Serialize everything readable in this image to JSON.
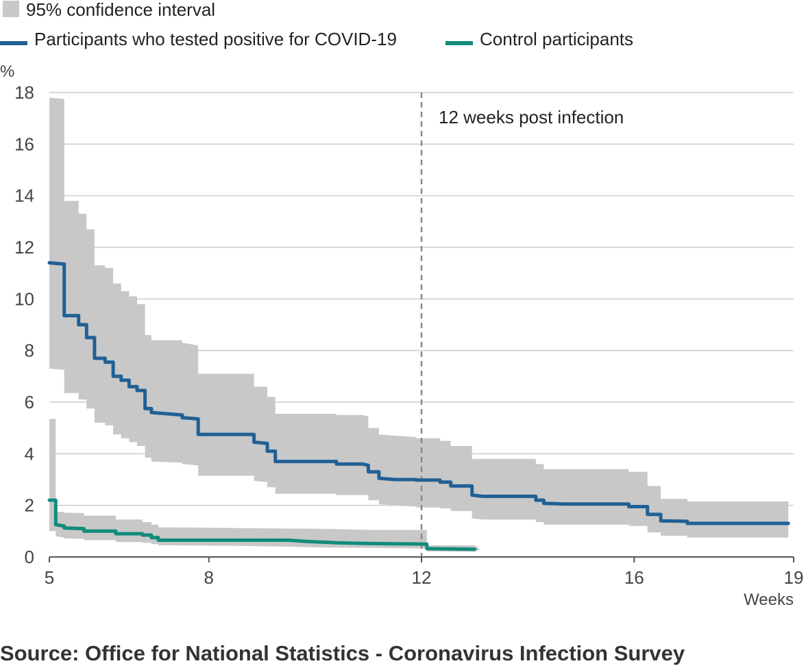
{
  "chart_data": {
    "type": "line",
    "xlabel": "Weeks",
    "ylabel": "%",
    "xlim": [
      5,
      19
    ],
    "ylim": [
      0,
      18
    ],
    "x_ticks": [
      5,
      8,
      12,
      16,
      19
    ],
    "y_ticks": [
      0,
      2,
      4,
      6,
      8,
      10,
      12,
      14,
      16,
      18
    ],
    "grid": "horizontal",
    "legend_position": "top-left",
    "legend": {
      "ci_label": "95% confidence interval",
      "covid_label": "Participants who tested positive for COVID-19",
      "control_label": "Control participants"
    },
    "annotation": {
      "x": 12,
      "text": "12 weeks post infection"
    },
    "colors": {
      "covid": "#206095",
      "control": "#118C7B",
      "ci": "#c8c8c8",
      "grid": "#cccccc",
      "annotation_line": "#888888"
    },
    "series": [
      {
        "name": "Participants who tested positive for COVID-19",
        "steps": [
          [
            5.0,
            11.4
          ],
          [
            5.28,
            11.35
          ],
          [
            5.28,
            9.35
          ],
          [
            5.55,
            9.35
          ],
          [
            5.55,
            9.0
          ],
          [
            5.7,
            9.0
          ],
          [
            5.7,
            8.5
          ],
          [
            5.85,
            8.5
          ],
          [
            5.85,
            7.7
          ],
          [
            6.05,
            7.7
          ],
          [
            6.05,
            7.55
          ],
          [
            6.2,
            7.55
          ],
          [
            6.2,
            7.0
          ],
          [
            6.35,
            7.0
          ],
          [
            6.35,
            6.85
          ],
          [
            6.5,
            6.85
          ],
          [
            6.5,
            6.6
          ],
          [
            6.65,
            6.6
          ],
          [
            6.65,
            6.45
          ],
          [
            6.8,
            6.45
          ],
          [
            6.8,
            5.75
          ],
          [
            6.92,
            5.75
          ],
          [
            6.92,
            5.6
          ],
          [
            7.5,
            5.5
          ],
          [
            7.5,
            5.4
          ],
          [
            7.8,
            5.35
          ],
          [
            7.8,
            4.75
          ],
          [
            8.85,
            4.75
          ],
          [
            8.85,
            4.45
          ],
          [
            9.1,
            4.4
          ],
          [
            9.1,
            4.1
          ],
          [
            9.25,
            4.1
          ],
          [
            9.25,
            3.7
          ],
          [
            10.4,
            3.7
          ],
          [
            10.4,
            3.6
          ],
          [
            10.9,
            3.6
          ],
          [
            11.0,
            3.55
          ],
          [
            11.0,
            3.3
          ],
          [
            11.2,
            3.3
          ],
          [
            11.2,
            3.05
          ],
          [
            11.5,
            3.0
          ],
          [
            11.9,
            3.0
          ],
          [
            11.9,
            2.98
          ],
          [
            12.35,
            2.98
          ],
          [
            12.35,
            2.9
          ],
          [
            12.55,
            2.9
          ],
          [
            12.55,
            2.75
          ],
          [
            12.95,
            2.75
          ],
          [
            12.95,
            2.4
          ],
          [
            13.15,
            2.35
          ],
          [
            14.15,
            2.35
          ],
          [
            14.15,
            2.2
          ],
          [
            14.3,
            2.2
          ],
          [
            14.3,
            2.08
          ],
          [
            14.7,
            2.05
          ],
          [
            15.9,
            2.05
          ],
          [
            15.9,
            1.95
          ],
          [
            16.25,
            1.95
          ],
          [
            16.25,
            1.65
          ],
          [
            16.5,
            1.65
          ],
          [
            16.5,
            1.4
          ],
          [
            17.0,
            1.38
          ],
          [
            17.0,
            1.3
          ],
          [
            18.9,
            1.3
          ]
        ],
        "ci_upper": [
          [
            5.0,
            17.8
          ],
          [
            5.28,
            17.75
          ],
          [
            5.28,
            13.8
          ],
          [
            5.55,
            13.8
          ],
          [
            5.55,
            13.3
          ],
          [
            5.7,
            13.3
          ],
          [
            5.7,
            12.7
          ],
          [
            5.85,
            12.7
          ],
          [
            5.85,
            11.3
          ],
          [
            6.05,
            11.3
          ],
          [
            6.05,
            11.2
          ],
          [
            6.2,
            11.2
          ],
          [
            6.2,
            10.6
          ],
          [
            6.35,
            10.6
          ],
          [
            6.35,
            10.3
          ],
          [
            6.5,
            10.3
          ],
          [
            6.5,
            10.1
          ],
          [
            6.65,
            10.1
          ],
          [
            6.65,
            9.8
          ],
          [
            6.8,
            9.8
          ],
          [
            6.8,
            8.6
          ],
          [
            6.92,
            8.6
          ],
          [
            6.92,
            8.4
          ],
          [
            7.5,
            8.4
          ],
          [
            7.5,
            8.3
          ],
          [
            7.8,
            8.2
          ],
          [
            7.8,
            7.1
          ],
          [
            8.85,
            7.1
          ],
          [
            8.85,
            6.6
          ],
          [
            9.1,
            6.6
          ],
          [
            9.1,
            6.2
          ],
          [
            9.25,
            6.2
          ],
          [
            9.25,
            5.55
          ],
          [
            10.4,
            5.55
          ],
          [
            10.4,
            5.5
          ],
          [
            10.9,
            5.5
          ],
          [
            11.0,
            5.45
          ],
          [
            11.0,
            5.0
          ],
          [
            11.2,
            5.0
          ],
          [
            11.2,
            4.75
          ],
          [
            11.5,
            4.7
          ],
          [
            11.9,
            4.65
          ],
          [
            11.9,
            4.6
          ],
          [
            12.35,
            4.6
          ],
          [
            12.35,
            4.5
          ],
          [
            12.55,
            4.5
          ],
          [
            12.55,
            4.3
          ],
          [
            12.95,
            4.3
          ],
          [
            12.95,
            3.8
          ],
          [
            13.15,
            3.8
          ],
          [
            14.15,
            3.8
          ],
          [
            14.15,
            3.6
          ],
          [
            14.3,
            3.6
          ],
          [
            14.3,
            3.4
          ],
          [
            14.7,
            3.4
          ],
          [
            15.9,
            3.4
          ],
          [
            15.9,
            3.3
          ],
          [
            16.25,
            3.3
          ],
          [
            16.25,
            2.75
          ],
          [
            16.5,
            2.75
          ],
          [
            16.5,
            2.25
          ],
          [
            17.0,
            2.25
          ],
          [
            17.0,
            2.15
          ],
          [
            18.9,
            2.15
          ]
        ],
        "ci_lower": [
          [
            5.0,
            7.3
          ],
          [
            5.28,
            7.25
          ],
          [
            5.28,
            6.35
          ],
          [
            5.55,
            6.35
          ],
          [
            5.55,
            6.1
          ],
          [
            5.7,
            6.1
          ],
          [
            5.7,
            5.75
          ],
          [
            5.85,
            5.75
          ],
          [
            5.85,
            5.2
          ],
          [
            6.05,
            5.2
          ],
          [
            6.05,
            5.1
          ],
          [
            6.2,
            5.1
          ],
          [
            6.2,
            4.75
          ],
          [
            6.35,
            4.75
          ],
          [
            6.35,
            4.6
          ],
          [
            6.5,
            4.6
          ],
          [
            6.5,
            4.45
          ],
          [
            6.65,
            4.45
          ],
          [
            6.65,
            4.3
          ],
          [
            6.8,
            4.3
          ],
          [
            6.8,
            3.85
          ],
          [
            6.92,
            3.85
          ],
          [
            6.92,
            3.7
          ],
          [
            7.5,
            3.65
          ],
          [
            7.5,
            3.6
          ],
          [
            7.8,
            3.55
          ],
          [
            7.8,
            3.15
          ],
          [
            8.85,
            3.15
          ],
          [
            8.85,
            2.95
          ],
          [
            9.1,
            2.9
          ],
          [
            9.1,
            2.7
          ],
          [
            9.25,
            2.7
          ],
          [
            9.25,
            2.45
          ],
          [
            10.4,
            2.45
          ],
          [
            10.4,
            2.4
          ],
          [
            10.9,
            2.4
          ],
          [
            11.0,
            2.4
          ],
          [
            11.0,
            2.2
          ],
          [
            11.2,
            2.2
          ],
          [
            11.2,
            2.05
          ],
          [
            11.5,
            2.0
          ],
          [
            11.9,
            1.95
          ],
          [
            11.9,
            1.92
          ],
          [
            12.35,
            1.92
          ],
          [
            12.35,
            1.88
          ],
          [
            12.55,
            1.88
          ],
          [
            12.55,
            1.78
          ],
          [
            12.95,
            1.78
          ],
          [
            12.95,
            1.5
          ],
          [
            13.15,
            1.45
          ],
          [
            14.15,
            1.45
          ],
          [
            14.15,
            1.35
          ],
          [
            14.3,
            1.35
          ],
          [
            14.3,
            1.25
          ],
          [
            14.7,
            1.25
          ],
          [
            15.9,
            1.25
          ],
          [
            15.9,
            1.2
          ],
          [
            16.25,
            1.2
          ],
          [
            16.25,
            0.95
          ],
          [
            16.5,
            0.95
          ],
          [
            16.5,
            0.82
          ],
          [
            17.0,
            0.82
          ],
          [
            17.0,
            0.75
          ],
          [
            18.9,
            0.75
          ]
        ]
      },
      {
        "name": "Control participants",
        "steps": [
          [
            5.0,
            2.2
          ],
          [
            5.12,
            2.2
          ],
          [
            5.12,
            1.25
          ],
          [
            5.28,
            1.2
          ],
          [
            5.28,
            1.12
          ],
          [
            5.65,
            1.1
          ],
          [
            5.65,
            1.0
          ],
          [
            6.25,
            1.0
          ],
          [
            6.25,
            0.9
          ],
          [
            6.75,
            0.9
          ],
          [
            6.75,
            0.85
          ],
          [
            6.92,
            0.85
          ],
          [
            6.92,
            0.75
          ],
          [
            7.05,
            0.75
          ],
          [
            7.05,
            0.65
          ],
          [
            8.5,
            0.65
          ],
          [
            9.5,
            0.65
          ],
          [
            9.85,
            0.6
          ],
          [
            10.4,
            0.55
          ],
          [
            11.0,
            0.52
          ],
          [
            12.1,
            0.5
          ],
          [
            12.1,
            0.32
          ],
          [
            13.0,
            0.3
          ]
        ],
        "ci_upper": [
          [
            5.0,
            5.35
          ],
          [
            5.12,
            5.35
          ],
          [
            5.12,
            1.75
          ],
          [
            5.28,
            1.75
          ],
          [
            5.28,
            1.72
          ],
          [
            5.65,
            1.7
          ],
          [
            5.65,
            1.6
          ],
          [
            6.25,
            1.6
          ],
          [
            6.25,
            1.45
          ],
          [
            6.75,
            1.45
          ],
          [
            6.75,
            1.35
          ],
          [
            6.92,
            1.35
          ],
          [
            6.92,
            1.25
          ],
          [
            7.05,
            1.25
          ],
          [
            7.05,
            1.15
          ],
          [
            8.5,
            1.12
          ],
          [
            9.5,
            1.1
          ],
          [
            9.85,
            1.1
          ],
          [
            10.4,
            1.08
          ],
          [
            11.0,
            1.05
          ],
          [
            12.1,
            1.05
          ],
          [
            12.1,
            0.45
          ],
          [
            13.0,
            0.45
          ],
          [
            13.1,
            0.3
          ]
        ],
        "ci_lower": [
          [
            5.0,
            1.0
          ],
          [
            5.12,
            1.0
          ],
          [
            5.12,
            0.8
          ],
          [
            5.28,
            0.75
          ],
          [
            5.28,
            0.72
          ],
          [
            5.65,
            0.7
          ],
          [
            5.65,
            0.65
          ],
          [
            6.25,
            0.65
          ],
          [
            6.25,
            0.58
          ],
          [
            6.75,
            0.58
          ],
          [
            6.75,
            0.55
          ],
          [
            6.92,
            0.55
          ],
          [
            6.92,
            0.5
          ],
          [
            7.05,
            0.5
          ],
          [
            7.05,
            0.45
          ],
          [
            8.5,
            0.43
          ],
          [
            9.5,
            0.4
          ],
          [
            9.85,
            0.38
          ],
          [
            10.4,
            0.36
          ],
          [
            11.0,
            0.35
          ],
          [
            12.1,
            0.33
          ],
          [
            12.1,
            0.22
          ],
          [
            13.0,
            0.2
          ],
          [
            13.1,
            0.3
          ]
        ]
      }
    ]
  },
  "source": "Source: Office for National Statistics - Coronavirus Infection Survey"
}
